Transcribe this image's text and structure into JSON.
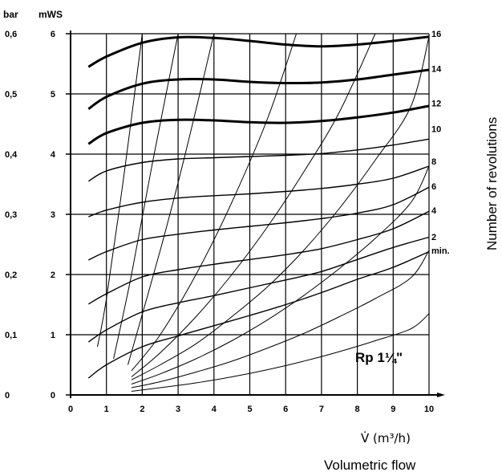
{
  "chart_data": {
    "type": "line",
    "title": "",
    "model_label": "Rp 1¼\"",
    "xlabel": "V̇ (m³/h)",
    "xlabel_caption": "Volumetric flow",
    "ylabel_left": "bar",
    "ylabel_right": "mWS",
    "curve_axis_label": "Number of revolutions",
    "x_ticks": [
      "0",
      "1",
      "2",
      "3",
      "4",
      "5",
      "6",
      "7",
      "8",
      "9",
      "10"
    ],
    "y_ticks_mws": [
      "0",
      "1",
      "2",
      "3",
      "4",
      "5",
      "6"
    ],
    "y_ticks_bar": [
      "0",
      "0,1",
      "0,2",
      "0,3",
      "0,4",
      "0,5",
      "0,6"
    ],
    "xlim": [
      0,
      10
    ],
    "ylim": [
      0,
      6
    ],
    "grid": true,
    "curve_labels": [
      "16",
      "14",
      "12",
      "10",
      "8",
      "6",
      "4",
      "2",
      "min."
    ],
    "pump_curves": [
      {
        "label": "16",
        "bold": true,
        "x": [
          0.5,
          1,
          2,
          3,
          4,
          5,
          6,
          7,
          8,
          9,
          10
        ],
        "y": [
          5.45,
          5.62,
          5.85,
          5.94,
          5.93,
          5.88,
          5.82,
          5.79,
          5.82,
          5.88,
          5.95
        ]
      },
      {
        "label": "14",
        "bold": true,
        "x": [
          0.5,
          1,
          2,
          3,
          4,
          5,
          6,
          7,
          8,
          9,
          10
        ],
        "y": [
          4.75,
          4.95,
          5.17,
          5.24,
          5.24,
          5.2,
          5.18,
          5.19,
          5.24,
          5.32,
          5.4
        ]
      },
      {
        "label": "12",
        "bold": true,
        "x": [
          0.5,
          1,
          2,
          3,
          4,
          5,
          6,
          7,
          8,
          9,
          10
        ],
        "y": [
          4.17,
          4.35,
          4.52,
          4.57,
          4.56,
          4.53,
          4.52,
          4.55,
          4.61,
          4.69,
          4.8
        ]
      },
      {
        "label": "10",
        "bold": false,
        "x": [
          0.5,
          1,
          2,
          3,
          4,
          5,
          6,
          7,
          8,
          9,
          10
        ],
        "y": [
          3.55,
          3.72,
          3.86,
          3.92,
          3.94,
          3.96,
          3.98,
          4.01,
          4.07,
          4.15,
          4.25
        ]
      },
      {
        "label": "8",
        "bold": false,
        "x": [
          0.5,
          1,
          2,
          3,
          4,
          5,
          6,
          7,
          8,
          9,
          10
        ],
        "y": [
          2.96,
          3.07,
          3.2,
          3.27,
          3.31,
          3.34,
          3.38,
          3.43,
          3.5,
          3.6,
          3.8
        ]
      },
      {
        "label": "6",
        "bold": false,
        "x": [
          0.5,
          1,
          2,
          3,
          4,
          5,
          6,
          7,
          8,
          9,
          10
        ],
        "y": [
          2.24,
          2.38,
          2.58,
          2.67,
          2.74,
          2.8,
          2.86,
          2.93,
          3.02,
          3.16,
          3.45
        ]
      },
      {
        "label": "4",
        "bold": false,
        "x": [
          0.5,
          1,
          2,
          3,
          4,
          5,
          6,
          7,
          8,
          9,
          10
        ],
        "y": [
          1.51,
          1.68,
          1.96,
          2.08,
          2.17,
          2.25,
          2.33,
          2.43,
          2.58,
          2.76,
          3.05
        ]
      },
      {
        "label": "2",
        "bold": false,
        "x": [
          0.5,
          1,
          2,
          3,
          4,
          5,
          6,
          7,
          8,
          9,
          10
        ],
        "y": [
          0.88,
          1.08,
          1.38,
          1.53,
          1.65,
          1.78,
          1.91,
          2.05,
          2.25,
          2.45,
          2.62
        ]
      },
      {
        "label": "min.",
        "bold": false,
        "x": [
          0.5,
          1,
          2,
          3,
          4,
          5,
          6,
          7,
          8,
          9,
          10
        ],
        "y": [
          0.28,
          0.5,
          0.8,
          0.98,
          1.15,
          1.32,
          1.5,
          1.7,
          1.92,
          2.12,
          2.38
        ]
      }
    ],
    "system_curves": [
      {
        "x": [
          0.75,
          1,
          1.5,
          2
        ],
        "y": [
          0.8,
          1.6,
          3.7,
          6.0
        ]
      },
      {
        "x": [
          1.2,
          1.7,
          2.3,
          3
        ],
        "y": [
          0.6,
          2.0,
          3.9,
          6.0
        ]
      },
      {
        "x": [
          1.6,
          2.5,
          3.2,
          4
        ],
        "y": [
          0.5,
          2.4,
          4.0,
          6.0
        ]
      },
      {
        "x": [
          1.7,
          2.5,
          3.5,
          4.5,
          5.5,
          6.3
        ],
        "y": [
          0.4,
          1.0,
          2.0,
          3.2,
          4.6,
          6.0
        ]
      },
      {
        "x": [
          1.7,
          2.5,
          3.5,
          4.5,
          5.5,
          6.5,
          7.5,
          8.5
        ],
        "y": [
          0.3,
          0.7,
          1.3,
          2.0,
          2.8,
          3.7,
          4.7,
          6.0
        ]
      },
      {
        "x": [
          1.7,
          2.5,
          3.5,
          4.5,
          5.5,
          6.5,
          7.5,
          8.5,
          9.5,
          10
        ],
        "y": [
          0.25,
          0.5,
          0.85,
          1.3,
          1.8,
          2.4,
          3.1,
          3.9,
          4.8,
          5.95
        ]
      },
      {
        "x": [
          1.7,
          2.5,
          3.5,
          4.5,
          5.5,
          6.5,
          7.5,
          8.5,
          9.5,
          10
        ],
        "y": [
          0.18,
          0.35,
          0.6,
          0.9,
          1.25,
          1.65,
          2.1,
          2.6,
          3.2,
          3.8
        ]
      },
      {
        "x": [
          1.7,
          2.5,
          3.5,
          4.5,
          5.5,
          6.5,
          7.5,
          8.5,
          9.5,
          10
        ],
        "y": [
          0.12,
          0.22,
          0.38,
          0.56,
          0.78,
          1.02,
          1.3,
          1.6,
          1.95,
          2.4
        ]
      },
      {
        "x": [
          1.7,
          2.5,
          3.5,
          4.5,
          5.5,
          6.5,
          7.5,
          8.5,
          9.5,
          10
        ],
        "y": [
          0.06,
          0.12,
          0.2,
          0.3,
          0.42,
          0.56,
          0.72,
          0.9,
          1.1,
          1.35
        ]
      }
    ]
  }
}
